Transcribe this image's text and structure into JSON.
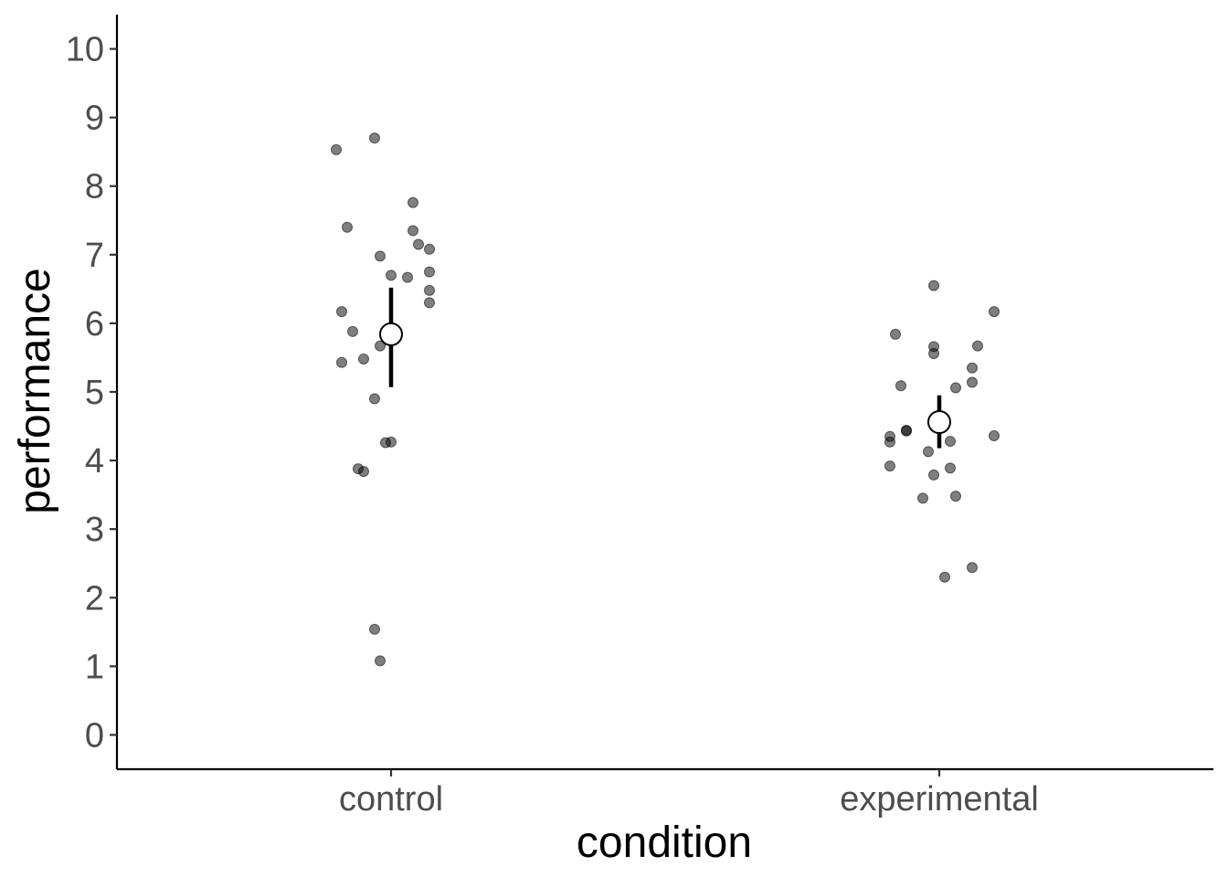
{
  "chart_data": {
    "type": "scatter",
    "xlabel": "condition",
    "ylabel": "performance",
    "categories": [
      "control",
      "experimental"
    ],
    "ylim": [
      -0.5,
      10.5
    ],
    "yticks": [
      0,
      1,
      2,
      3,
      4,
      5,
      6,
      7,
      8,
      9,
      10
    ],
    "grid": false,
    "groups": [
      {
        "name": "control",
        "points": [
          {
            "dx": -0.1,
            "y": 8.53
          },
          {
            "dx": -0.03,
            "y": 8.7
          },
          {
            "dx": 0.04,
            "y": 7.76
          },
          {
            "dx": -0.08,
            "y": 7.4
          },
          {
            "dx": 0.04,
            "y": 7.35
          },
          {
            "dx": 0.05,
            "y": 7.15
          },
          {
            "dx": 0.07,
            "y": 7.08
          },
          {
            "dx": -0.02,
            "y": 6.98
          },
          {
            "dx": 0.07,
            "y": 6.75
          },
          {
            "dx": 0.0,
            "y": 6.7
          },
          {
            "dx": 0.03,
            "y": 6.67
          },
          {
            "dx": 0.07,
            "y": 6.48
          },
          {
            "dx": 0.07,
            "y": 6.3
          },
          {
            "dx": -0.09,
            "y": 6.17
          },
          {
            "dx": -0.07,
            "y": 5.88
          },
          {
            "dx": -0.02,
            "y": 5.67
          },
          {
            "dx": -0.05,
            "y": 5.48
          },
          {
            "dx": -0.09,
            "y": 5.43
          },
          {
            "dx": -0.03,
            "y": 4.9
          },
          {
            "dx": 0.0,
            "y": 4.27
          },
          {
            "dx": -0.01,
            "y": 4.26
          },
          {
            "dx": -0.06,
            "y": 3.88
          },
          {
            "dx": -0.05,
            "y": 3.84
          },
          {
            "dx": -0.03,
            "y": 1.54
          },
          {
            "dx": -0.02,
            "y": 1.08
          }
        ],
        "mean": 5.84,
        "ci": [
          5.07,
          6.52
        ]
      },
      {
        "name": "experimental",
        "points": [
          {
            "dx": -0.01,
            "y": 6.55
          },
          {
            "dx": 0.1,
            "y": 6.17
          },
          {
            "dx": -0.08,
            "y": 5.84
          },
          {
            "dx": -0.01,
            "y": 5.66
          },
          {
            "dx": 0.07,
            "y": 5.67
          },
          {
            "dx": -0.01,
            "y": 5.56
          },
          {
            "dx": 0.06,
            "y": 5.35
          },
          {
            "dx": 0.06,
            "y": 5.14
          },
          {
            "dx": 0.03,
            "y": 5.06
          },
          {
            "dx": -0.07,
            "y": 5.09
          },
          {
            "dx": -0.06,
            "y": 4.44
          },
          {
            "dx": -0.06,
            "y": 4.43
          },
          {
            "dx": -0.09,
            "y": 4.35
          },
          {
            "dx": 0.1,
            "y": 4.36
          },
          {
            "dx": -0.09,
            "y": 4.27
          },
          {
            "dx": 0.02,
            "y": 4.28
          },
          {
            "dx": -0.02,
            "y": 4.13
          },
          {
            "dx": -0.09,
            "y": 3.92
          },
          {
            "dx": 0.02,
            "y": 3.89
          },
          {
            "dx": -0.01,
            "y": 3.79
          },
          {
            "dx": 0.03,
            "y": 3.48
          },
          {
            "dx": -0.03,
            "y": 3.45
          },
          {
            "dx": 0.06,
            "y": 2.44
          },
          {
            "dx": 0.01,
            "y": 2.3
          }
        ],
        "mean": 4.56,
        "ci": [
          4.18,
          4.95
        ]
      }
    ]
  }
}
